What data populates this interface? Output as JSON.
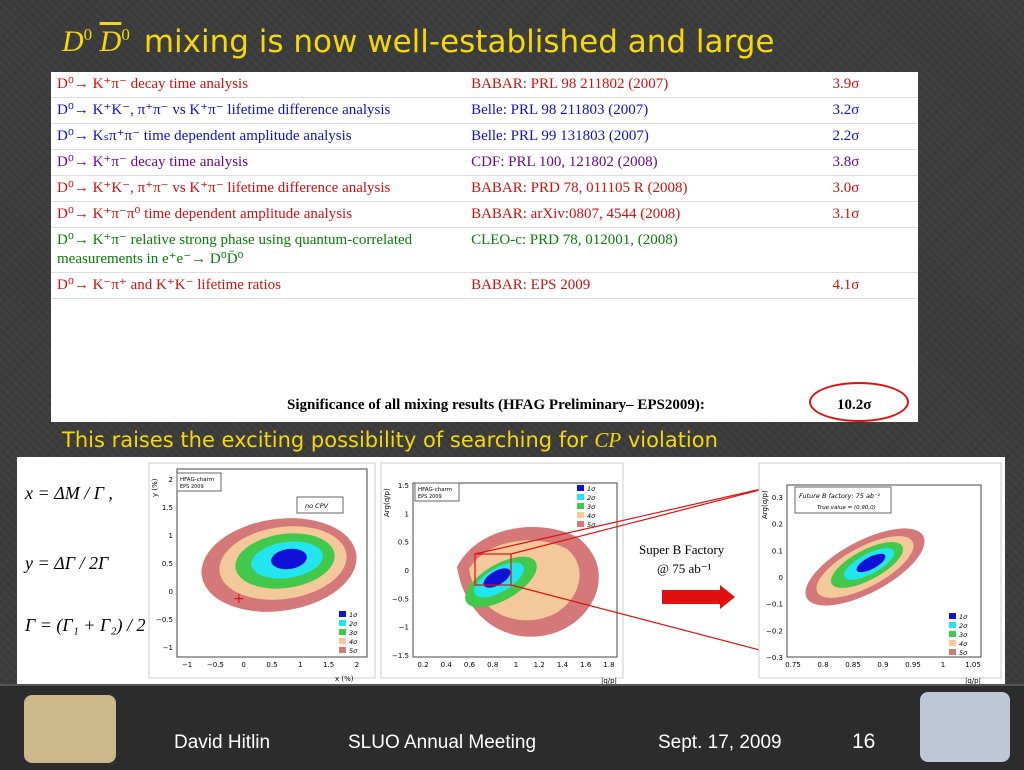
{
  "title": {
    "sym_D": "D",
    "sym_D_sup": "0",
    "sym_Dbar": "D",
    "sym_Dbar_sup": "0",
    "text": "mixing is now well-established and large"
  },
  "table": {
    "rows": [
      {
        "c1": "D⁰→ K⁺π⁻ decay time analysis",
        "c2": "BABAR: PRL 98 211802 (2007)",
        "c3": "3.9σ",
        "color": "red"
      },
      {
        "c1": "D⁰→ K⁺K⁻, π⁺π⁻ vs K⁺π⁻ lifetime difference analysis",
        "c2": "Belle:  PRL 98 211803 (2007)",
        "c3": "3.2σ",
        "color": "blue"
      },
      {
        "c1": "D⁰→ Kₛπ⁺π⁻ time dependent amplitude analysis",
        "c2": "Belle: PRL 99 131803 (2007)",
        "c3": "2.2σ",
        "color": "blue"
      },
      {
        "c1": "D⁰→ K⁺π⁻ decay time analysis",
        "c2": "CDF: PRL 100, 121802 (2008)",
        "c3": "3.8σ",
        "color": "purple"
      },
      {
        "c1": "D⁰→ K⁺K⁻, π⁺π⁻ vs K⁺π⁻ lifetime difference analysis",
        "c2": "BABAR: PRD 78, 011105 R (2008)",
        "c3": "3.0σ",
        "color": "red"
      },
      {
        "c1": "D⁰→ K⁺π⁻π⁰ time dependent amplitude analysis",
        "c2": "BABAR: arXiv:0807, 4544 (2008)",
        "c3": "3.1σ",
        "color": "red"
      },
      {
        "c1": "D⁰→ K⁺π⁻ relative strong phase using quantum-correlated measurements in e⁺e⁻→ D⁰D̄⁰",
        "c2": "CLEO-c: PRD 78, 012001, (2008)",
        "c3": "",
        "color": "green"
      },
      {
        "c1": "D⁰→ K⁻π⁺ and K⁺K⁻ lifetime ratios",
        "c2": "BABAR: EPS 2009",
        "c3": "4.1σ",
        "color": "red"
      }
    ],
    "significance_label": "Significance of all mixing results (HFAG Preliminary– EPS2009):",
    "significance_value": "10.2σ"
  },
  "subtitle": {
    "pre": "This raises the exciting possibility of searching for ",
    "cp": "CP",
    "post": " violation"
  },
  "formulas": {
    "x": "x = ΔM / Γ ,",
    "y": "y = ΔΓ / 2Γ",
    "g": "Γ = (Γ₁ + Γ₂) / 2"
  },
  "plot1": {
    "badge": "HFAG-charm",
    "badge2": "EPS 2009",
    "box": "no CPV",
    "xlabel": "x (%)",
    "ylabel": "y (%)",
    "yticks": [
      "2",
      "1.5",
      "1",
      "0.5",
      "0",
      "−0.5",
      "−1"
    ],
    "xticks": [
      "−1",
      "−0.5",
      "0",
      "0.5",
      "1",
      "1.5",
      "2"
    ],
    "legend": [
      "1σ",
      "2σ",
      "3σ",
      "4σ",
      "5σ"
    ]
  },
  "plot2": {
    "badge": "HFAG-charm",
    "badge2": "EPS 2009",
    "xlabel": "|q/p|",
    "ylabel": "Arg(q/p)",
    "yticks": [
      "1.5",
      "1",
      "0.5",
      "0",
      "−0.5",
      "−1",
      "−1.5"
    ],
    "xticks": [
      "0.2",
      "0.4",
      "0.6",
      "0.8",
      "1",
      "1.2",
      "1.4",
      "1.6",
      "1.8"
    ],
    "legend": [
      "1σ",
      "2σ",
      "3σ",
      "4σ",
      "5σ"
    ]
  },
  "plot3": {
    "box": "Future B factory: 75 ab⁻¹",
    "box2": "True value = (0.90,0)",
    "xlabel": "|q/p|",
    "ylabel": "Arg(q/p)",
    "yticks": [
      "0.3",
      "0.2",
      "0.1",
      "0",
      "−0.1",
      "−0.2",
      "−0.3"
    ],
    "xticks": [
      "0.75",
      "0.8",
      "0.85",
      "0.9",
      "0.95",
      "1",
      "1.05"
    ],
    "legend": [
      "1σ",
      "2σ",
      "3σ",
      "4σ",
      "5σ"
    ]
  },
  "factory_label": {
    "line1": "Super B Factory",
    "line2": "@ 75 ab⁻¹"
  },
  "footer": {
    "author": "David Hitlin",
    "meeting": "SLUO Annual Meeting",
    "date": "Sept. 17, 2009",
    "page": "16"
  },
  "colors": {
    "title": "#f5d80c",
    "accent_red": "#e01010"
  }
}
